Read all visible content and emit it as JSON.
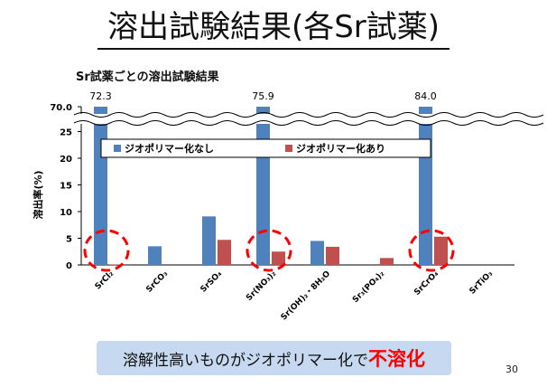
{
  "slide": {
    "title": "溶出試験結果(各Sr試薬)",
    "page_number": "30",
    "conclusion_text": "溶解性高いものがジオポリマー化で",
    "conclusion_emphasis": "不溶化",
    "conclusion_emphasis_color": "#ff0000",
    "conclusion_bg": "#c6d9f1"
  },
  "chart_data": {
    "type": "bar",
    "title": "Sr試薬ごとの溶出試験結果",
    "ylabel": "溶出率(%)",
    "xlabel": "",
    "categories": [
      "SrCl₂",
      "SrCO₃",
      "SrSO₄",
      "Sr(NO₃)₂",
      "Sr(OH)₂・8H₂O",
      "Sr₃(PO₄)₂",
      "SrCrO₄",
      "SrTiO₃"
    ],
    "series": [
      {
        "name": "ジオポリマー化なし",
        "color": "#4f81bd",
        "values": [
          72.3,
          3.5,
          9.1,
          75.9,
          4.5,
          0,
          84.0,
          0
        ]
      },
      {
        "name": "ジオポリマー化あり",
        "color": "#c0504d",
        "values": [
          0.1,
          0,
          4.7,
          2.5,
          3.4,
          1.3,
          5.3,
          0
        ]
      }
    ],
    "y_ticks": [
      "0",
      "5",
      "10",
      "15",
      "20",
      "25",
      "70.0"
    ],
    "ylim": [
      0,
      30
    ],
    "axis_break": true,
    "overflow_labels": [
      "72.3",
      "",
      "",
      "75.9",
      "",
      "",
      "84.0",
      ""
    ],
    "highlighted_categories": [
      0,
      3,
      6
    ],
    "highlight_color": "#ff0000",
    "legend_position": "top-center",
    "grid": false
  }
}
